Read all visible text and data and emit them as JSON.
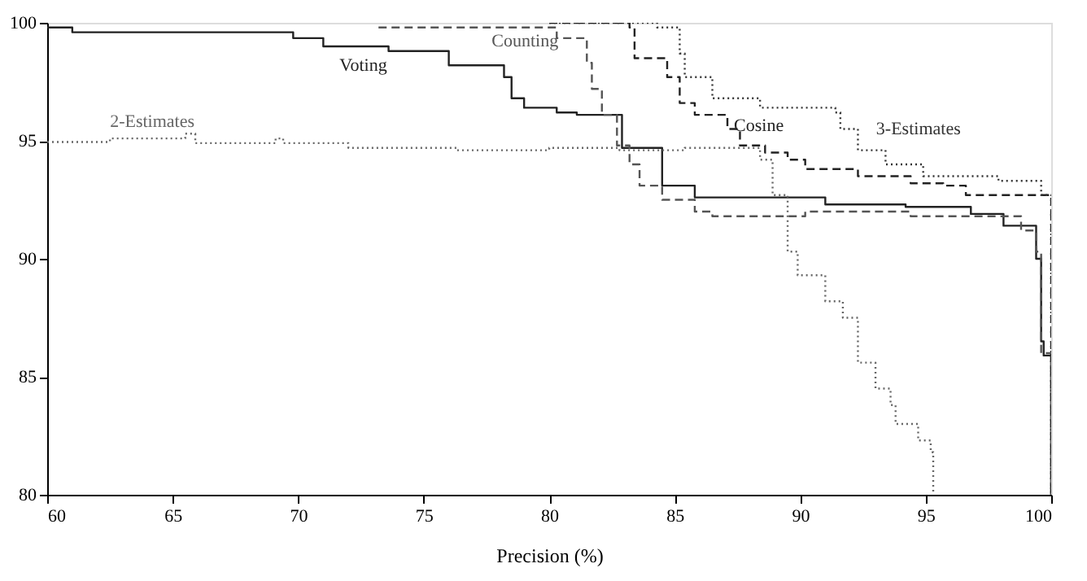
{
  "chart_data": {
    "type": "step",
    "xlabel": "Precision (%)",
    "xlim": [
      60,
      100
    ],
    "ylim": [
      80,
      100
    ],
    "xticks": [
      60,
      65,
      70,
      75,
      80,
      85,
      90,
      95,
      100
    ],
    "yticks": [
      80,
      85,
      90,
      95,
      100
    ],
    "grid": false,
    "marker": "none",
    "series": [
      {
        "name": "Voting",
        "color": "#222222",
        "line_style": "solid",
        "x": [
          60,
          61,
          69.8,
          71,
          73.6,
          76,
          78.2,
          78.5,
          79,
          80.3,
          81.1,
          82.9,
          84.5,
          85.8,
          91,
          94.2,
          96.8,
          98.1,
          99.4,
          99.6,
          99.7,
          100
        ],
        "values": [
          99.8,
          99.6,
          99.35,
          99.0,
          98.8,
          98.2,
          97.7,
          96.8,
          96.4,
          96.2,
          96.1,
          94.7,
          93.1,
          92.6,
          92.3,
          92.2,
          91.9,
          91.4,
          90.0,
          86.5,
          85.9,
          80
        ]
      },
      {
        "name": "Counting",
        "color": "#555555",
        "line_style": "dashed",
        "x": [
          73.2,
          80.3,
          81.5,
          81.7,
          82.1,
          82.7,
          83.2,
          83.6,
          84.5,
          85.8,
          86.5,
          90.2,
          94.4,
          97.7,
          98.8,
          99.4,
          99.6,
          100
        ],
        "values": [
          99.8,
          99.35,
          98.3,
          97.2,
          96.1,
          94.8,
          94.0,
          93.1,
          92.5,
          92.0,
          91.8,
          92.0,
          91.8,
          91.8,
          91.2,
          90.3,
          86.0,
          80
        ]
      },
      {
        "name": "Cosine",
        "color": "#222222",
        "line_style": "dashed",
        "x": [
          80,
          83.2,
          83.4,
          84.7,
          85.2,
          85.8,
          87.1,
          87.6,
          88.6,
          89.5,
          90.2,
          92.3,
          94.4,
          95.7,
          96.6,
          99.6,
          100
        ],
        "values": [
          100,
          99.8,
          98.5,
          97.7,
          96.6,
          96.1,
          95.5,
          94.8,
          94.5,
          94.2,
          93.8,
          93.5,
          93.2,
          93.1,
          92.7,
          92.7,
          80
        ]
      },
      {
        "name": "2-Estimates",
        "color": "#666666",
        "line_style": "dotted",
        "x": [
          60,
          62.5,
          65.5,
          65.9,
          69.1,
          69.4,
          72,
          76.3,
          80,
          82.8,
          85.4,
          88,
          88.4,
          88.9,
          89.5,
          89.9,
          91,
          91.7,
          92.3,
          93,
          93.6,
          93.8,
          94.7,
          95.2,
          95.3
        ],
        "values": [
          94.95,
          95.1,
          95.3,
          94.9,
          95.1,
          94.9,
          94.7,
          94.6,
          94.7,
          94.6,
          94.7,
          94.7,
          94.2,
          92.7,
          90.3,
          89.3,
          88.2,
          87.5,
          85.6,
          84.5,
          83.8,
          83.0,
          82.3,
          81.8,
          80.0
        ]
      },
      {
        "name": "3-Estimates",
        "color": "#333333",
        "line_style": "dotted",
        "x": [
          80,
          84.3,
          85.2,
          85.4,
          86.5,
          88.4,
          91.4,
          91.6,
          92.3,
          93.4,
          94.9,
          97.9,
          99.6,
          100
        ],
        "values": [
          100,
          99.8,
          98.7,
          97.7,
          96.8,
          96.4,
          96.2,
          95.5,
          94.6,
          94.0,
          93.5,
          93.3,
          92.7,
          80
        ]
      }
    ]
  }
}
